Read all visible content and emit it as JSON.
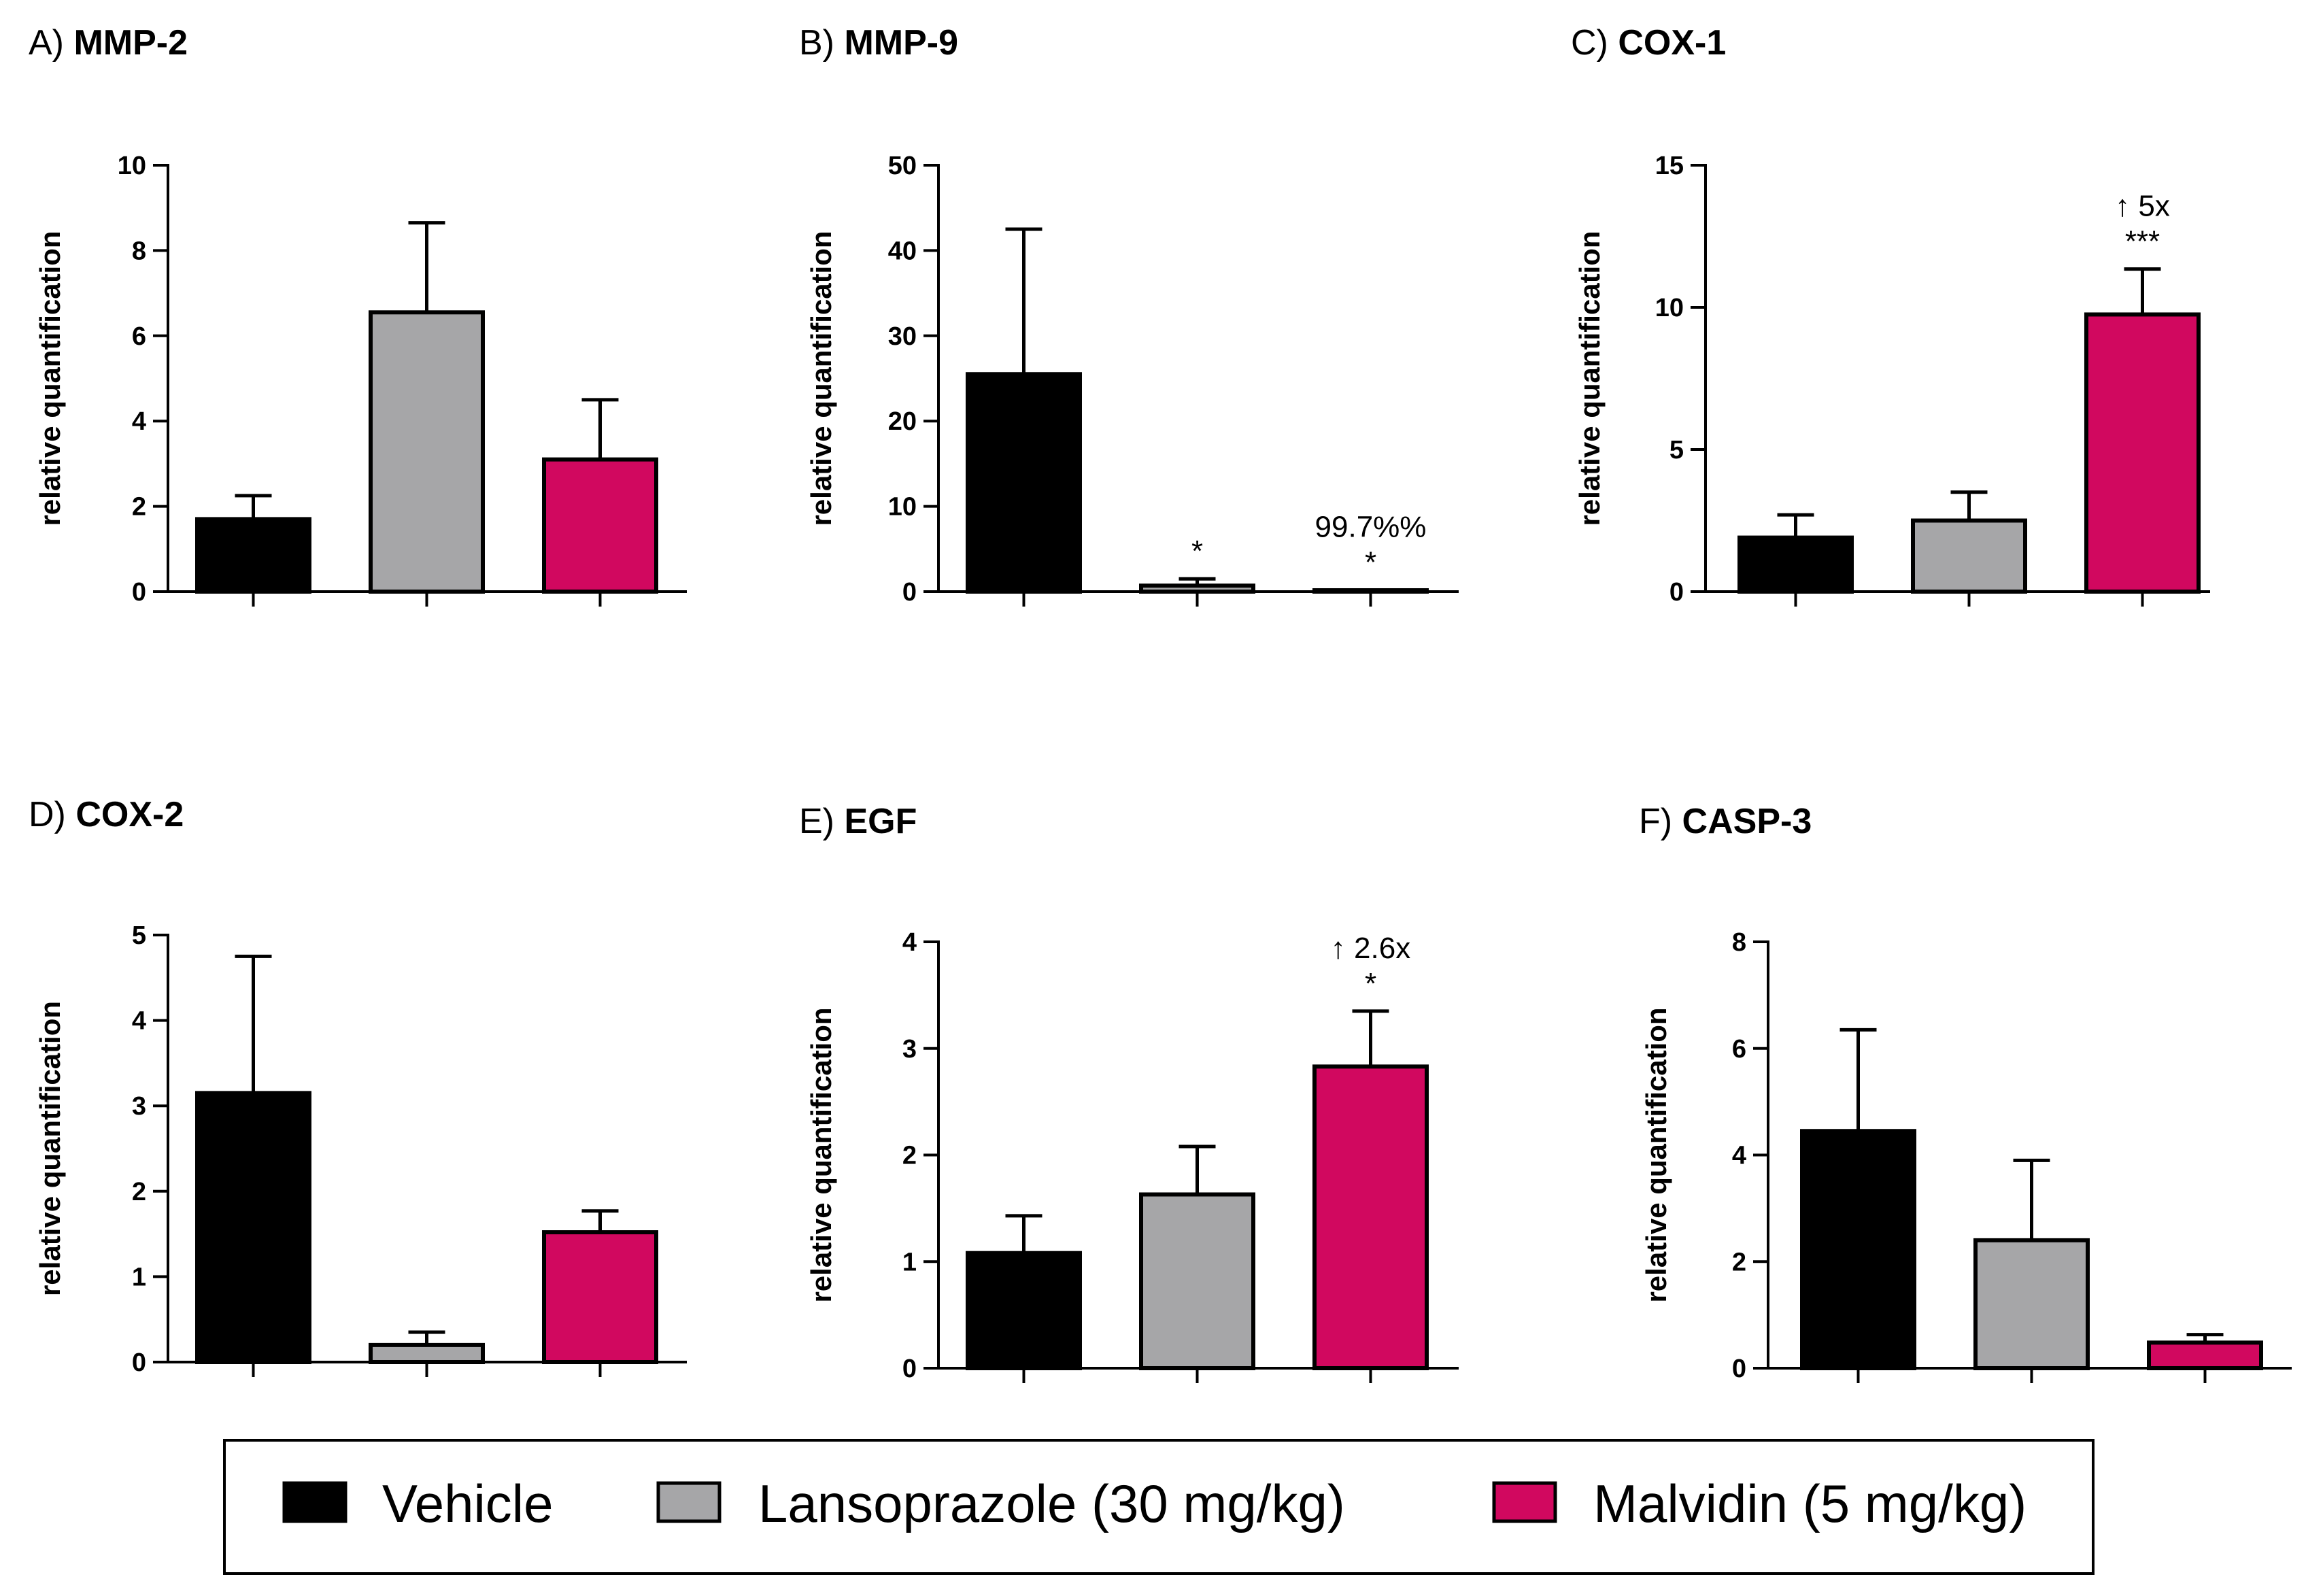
{
  "legend": {
    "items": [
      {
        "label": "Vehicle",
        "color": "#000000"
      },
      {
        "label": "Lansoprazole (30 mg/kg)",
        "color": "#a6a6a8"
      },
      {
        "label": "Malvidin (5 mg/kg)",
        "color": "#d1085f"
      }
    ]
  },
  "chart_data": [
    {
      "type": "bar",
      "letter": "A)",
      "title": "MMP-2",
      "ylabel": "relative quantification",
      "ylim": [
        0,
        10
      ],
      "yticks": [
        0,
        2,
        4,
        6,
        8,
        10
      ],
      "series": [
        {
          "name": "Vehicle",
          "value": 1.7,
          "error": 0.55
        },
        {
          "name": "Lansoprazole (30 mg/kg)",
          "value": 6.55,
          "error": 2.1
        },
        {
          "name": "Malvidin (5 mg/kg)",
          "value": 3.1,
          "error": 1.4
        }
      ],
      "annotations": [
        [],
        [],
        []
      ]
    },
    {
      "type": "bar",
      "letter": "B)",
      "title": "MMP-9",
      "ylabel": "relative quantification",
      "ylim": [
        0,
        50
      ],
      "yticks": [
        0,
        10,
        20,
        30,
        40,
        50
      ],
      "series": [
        {
          "name": "Vehicle",
          "value": 25.5,
          "error": 17
        },
        {
          "name": "Lansoprazole (30 mg/kg)",
          "value": 0.7,
          "error": 0.8
        },
        {
          "name": "Malvidin (5 mg/kg)",
          "value": 0.1,
          "error": 0.1
        }
      ],
      "annotations": [
        [],
        [
          "*"
        ],
        [
          "99.7%%",
          "*"
        ]
      ]
    },
    {
      "type": "bar",
      "letter": "C)",
      "title": "COX-1",
      "ylabel": "relative quantification",
      "ylim": [
        0,
        15
      ],
      "yticks": [
        0,
        5,
        10,
        15
      ],
      "series": [
        {
          "name": "Vehicle",
          "value": 1.9,
          "error": 0.8
        },
        {
          "name": "Lansoprazole (30 mg/kg)",
          "value": 2.5,
          "error": 1.0
        },
        {
          "name": "Malvidin (5 mg/kg)",
          "value": 9.75,
          "error": 1.6
        }
      ],
      "annotations": [
        [],
        [],
        [
          "↑ 5x",
          "***"
        ]
      ]
    },
    {
      "type": "bar",
      "letter": "D)",
      "title": "COX-2",
      "ylabel": "relative quantification",
      "ylim": [
        0,
        5
      ],
      "yticks": [
        0,
        1,
        2,
        3,
        4,
        5
      ],
      "series": [
        {
          "name": "Vehicle",
          "value": 3.15,
          "error": 1.6
        },
        {
          "name": "Lansoprazole (30 mg/kg)",
          "value": 0.2,
          "error": 0.15
        },
        {
          "name": "Malvidin (5 mg/kg)",
          "value": 1.52,
          "error": 0.25
        }
      ],
      "annotations": [
        [],
        [],
        []
      ]
    },
    {
      "type": "bar",
      "letter": "E)",
      "title": "EGF",
      "ylabel": "relative quantification",
      "ylim": [
        0,
        4
      ],
      "yticks": [
        0,
        1,
        2,
        3,
        4
      ],
      "series": [
        {
          "name": "Vehicle",
          "value": 1.08,
          "error": 0.35
        },
        {
          "name": "Lansoprazole (30 mg/kg)",
          "value": 1.63,
          "error": 0.45
        },
        {
          "name": "Malvidin (5 mg/kg)",
          "value": 2.83,
          "error": 0.52
        }
      ],
      "annotations": [
        [],
        [],
        [
          "↑ 2.6x",
          "*"
        ]
      ]
    },
    {
      "type": "bar",
      "letter": "F)",
      "title": "CASP-3",
      "ylabel": "relative quantification",
      "ylim": [
        0,
        8
      ],
      "yticks": [
        0,
        2,
        4,
        6,
        8
      ],
      "series": [
        {
          "name": "Vehicle",
          "value": 4.45,
          "error": 1.9
        },
        {
          "name": "Lansoprazole (30 mg/kg)",
          "value": 2.4,
          "error": 1.5
        },
        {
          "name": "Malvidin (5 mg/kg)",
          "value": 0.48,
          "error": 0.15
        }
      ],
      "annotations": [
        [],
        [],
        []
      ]
    }
  ]
}
